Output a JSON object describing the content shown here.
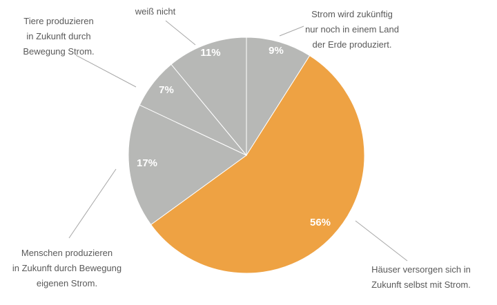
{
  "chart_data": {
    "type": "pie",
    "categories": [
      "Strom wird zukünftig\nnur noch in einem Land\nder Erde produziert.",
      "Häuser versorgen sich in\nZukunft selbst mit Strom.",
      "Menschen produzieren\nin Zukunft durch Bewegung\neigenen Strom.",
      "Tiere produzieren\nin Zukunft durch\nBewegung Strom.",
      "weiß nicht"
    ],
    "values": [
      9,
      56,
      17,
      7,
      11
    ],
    "value_labels": [
      "9%",
      "56%",
      "17%",
      "7%",
      "11%"
    ],
    "colors": [
      "#b7b8b6",
      "#eea243",
      "#b7b8b6",
      "#b7b8b6",
      "#b7b8b6"
    ]
  }
}
